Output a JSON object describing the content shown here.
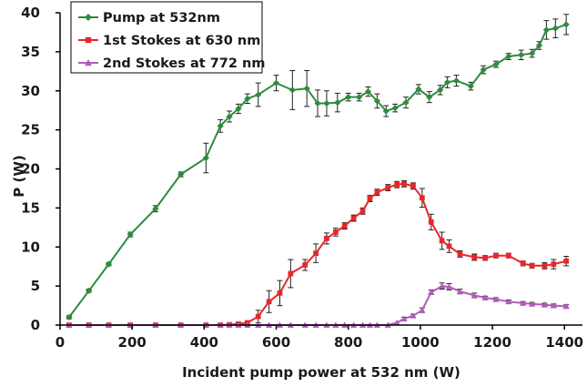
{
  "chart_data": {
    "type": "line",
    "title": "",
    "xlabel": "Incident pump power at 532 nm (W)",
    "ylabel": "P (W)",
    "xlim": [
      0,
      1450
    ],
    "ylim": [
      0,
      40
    ],
    "xticks": [
      0,
      200,
      400,
      600,
      800,
      1000,
      1200,
      1400
    ],
    "yticks": [
      0,
      5,
      10,
      15,
      20,
      25,
      30,
      35,
      40
    ],
    "grid": false,
    "legend_position": "top-left",
    "series": [
      {
        "name": "Pump at 532nm",
        "color": "#2e8b3e",
        "marker": "diamond",
        "x": [
          25,
          80,
          135,
          195,
          265,
          335,
          405,
          445,
          470,
          495,
          520,
          550,
          600,
          645,
          685,
          715,
          740,
          770,
          800,
          830,
          855,
          880,
          905,
          930,
          960,
          995,
          1025,
          1055,
          1075,
          1100,
          1140,
          1175,
          1210,
          1245,
          1280,
          1310,
          1330,
          1350,
          1375,
          1405
        ],
        "y": [
          1.0,
          4.4,
          7.8,
          11.6,
          14.9,
          19.3,
          21.4,
          25.5,
          26.7,
          27.7,
          29.0,
          29.5,
          31.0,
          30.1,
          30.3,
          28.4,
          28.4,
          28.5,
          29.2,
          29.2,
          29.9,
          28.7,
          27.4,
          27.8,
          28.5,
          30.2,
          29.2,
          30.1,
          31.1,
          31.3,
          30.6,
          32.7,
          33.4,
          34.4,
          34.6,
          34.8,
          35.8,
          37.8,
          38.0,
          38.5
        ],
        "errors": [
          0.2,
          0.2,
          0.2,
          0.3,
          0.4,
          0.3,
          1.9,
          0.8,
          0.7,
          0.6,
          0.6,
          1.5,
          1.0,
          2.5,
          2.3,
          1.7,
          1.6,
          1.2,
          0.5,
          0.5,
          0.6,
          0.9,
          0.7,
          0.5,
          0.7,
          0.6,
          0.7,
          0.6,
          0.7,
          0.7,
          0.5,
          0.5,
          0.4,
          0.4,
          0.6,
          0.5,
          0.5,
          1.2,
          1.2,
          1.3
        ]
      },
      {
        "name": "1st Stokes at 630 nm",
        "color": "#e8262a",
        "marker": "square",
        "x": [
          25,
          80,
          135,
          195,
          265,
          335,
          405,
          445,
          470,
          495,
          520,
          550,
          580,
          610,
          640,
          680,
          710,
          740,
          765,
          790,
          815,
          840,
          860,
          880,
          910,
          935,
          955,
          980,
          1005,
          1030,
          1060,
          1080,
          1110,
          1150,
          1180,
          1210,
          1245,
          1285,
          1310,
          1345,
          1370,
          1405
        ],
        "y": [
          0.0,
          0.0,
          0.0,
          0.0,
          0.0,
          0.0,
          0.0,
          0.0,
          0.05,
          0.15,
          0.3,
          1.1,
          3.0,
          4.1,
          6.6,
          7.7,
          9.2,
          11.1,
          11.9,
          12.7,
          13.7,
          14.6,
          16.2,
          17.0,
          17.6,
          18.0,
          18.1,
          17.8,
          16.3,
          13.2,
          10.8,
          10.1,
          9.1,
          8.7,
          8.6,
          8.9,
          8.9,
          7.9,
          7.6,
          7.6,
          7.8,
          8.2
        ],
        "errors": [
          0,
          0,
          0,
          0,
          0,
          0,
          0,
          0,
          0,
          0,
          0,
          0.8,
          1.4,
          1.6,
          1.8,
          0.7,
          1.2,
          0.7,
          0.5,
          0.4,
          0.4,
          0.4,
          0.4,
          0.4,
          0.4,
          0.4,
          0.4,
          0.4,
          1.2,
          1.0,
          1.1,
          0.8,
          0.4,
          0.4,
          0.3,
          0.3,
          0.3,
          0.3,
          0.3,
          0.4,
          0.6,
          0.6
        ]
      },
      {
        "name": "2nd Stokes at 772 nm",
        "color": "#b05cb8",
        "marker": "triangle",
        "x": [
          25,
          80,
          135,
          195,
          265,
          335,
          405,
          445,
          470,
          495,
          520,
          550,
          580,
          610,
          640,
          680,
          710,
          740,
          765,
          790,
          815,
          840,
          860,
          880,
          910,
          935,
          955,
          980,
          1005,
          1030,
          1060,
          1080,
          1110,
          1150,
          1180,
          1210,
          1245,
          1285,
          1310,
          1345,
          1370,
          1405
        ],
        "y": [
          0,
          0,
          0,
          0,
          0,
          0,
          0,
          0,
          0,
          0,
          0,
          0,
          0,
          0,
          0,
          0,
          0,
          0,
          0,
          0,
          0,
          0,
          0,
          0,
          0,
          0.3,
          0.8,
          1.2,
          1.9,
          4.2,
          5.0,
          4.9,
          4.3,
          3.8,
          3.5,
          3.3,
          3.0,
          2.8,
          2.7,
          2.6,
          2.5,
          2.4
        ],
        "errors": [
          0,
          0,
          0,
          0,
          0,
          0,
          0,
          0,
          0,
          0,
          0,
          0,
          0,
          0,
          0,
          0,
          0,
          0,
          0,
          0,
          0,
          0,
          0,
          0,
          0,
          0,
          0.2,
          0.2,
          0.3,
          0.3,
          0.4,
          0.4,
          0.3,
          0.3,
          0.2,
          0.2,
          0.2,
          0.2,
          0.2,
          0.2,
          0.2,
          0.2
        ]
      }
    ]
  }
}
